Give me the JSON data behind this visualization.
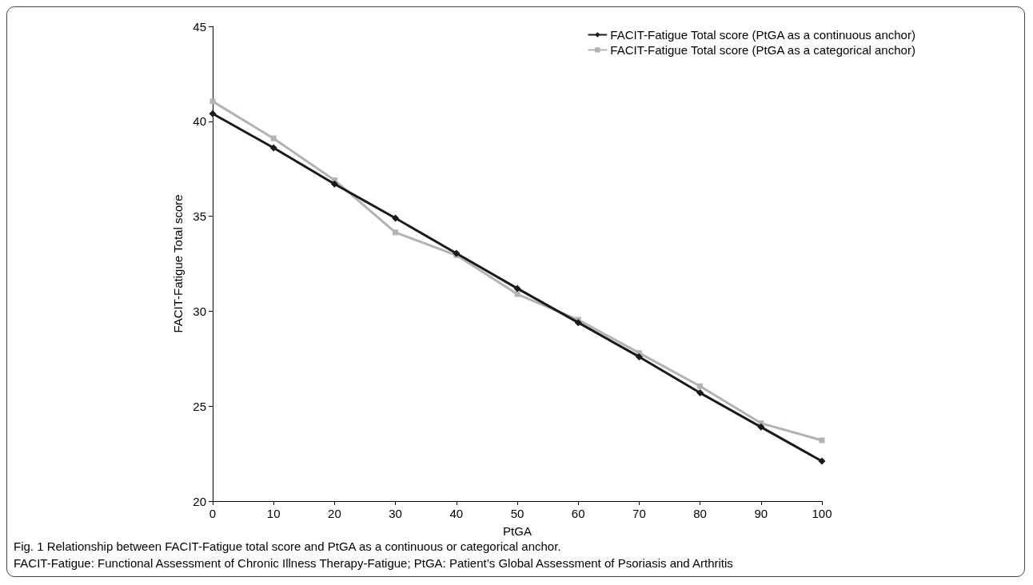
{
  "chart_data": {
    "type": "line",
    "xlabel": "PtGA",
    "ylabel": "FACIT-Fatigue Total score",
    "x": [
      0,
      10,
      20,
      30,
      40,
      50,
      60,
      70,
      80,
      90,
      100
    ],
    "series": [
      {
        "name": "FACIT-Fatigue Total score (PtGA as a continuous anchor)",
        "color": "#1a1a1a",
        "marker": "diamond",
        "values": [
          40.4,
          38.6,
          36.7,
          34.9,
          33.05,
          31.2,
          29.4,
          27.6,
          25.7,
          23.9,
          22.1
        ]
      },
      {
        "name": "FACIT-Fatigue Total score (PtGA as a categorical anchor)",
        "color": "#b3b3b3",
        "marker": "square",
        "values": [
          41.05,
          39.1,
          36.9,
          34.15,
          32.95,
          30.9,
          29.55,
          27.8,
          26.05,
          24.1,
          23.2
        ]
      }
    ],
    "xlim": [
      0,
      100
    ],
    "xticks": [
      0,
      10,
      20,
      30,
      40,
      50,
      60,
      70,
      80,
      90,
      100
    ],
    "ylim": [
      20,
      45
    ],
    "yticks": [
      20,
      25,
      30,
      35,
      40,
      45
    ],
    "grid": false,
    "legend": "top right",
    "line_style": "solid",
    "annotations": [
      "Fig. 1 Relationship between FACIT-Fatigue total score and PtGA as a continuous or categorical anchor.",
      "FACIT-Fatigue: Functional Assessment of Chronic Illness Therapy-Fatigue; PtGA: Patient’s Global Assessment of Psoriasis and Arthritis"
    ]
  }
}
